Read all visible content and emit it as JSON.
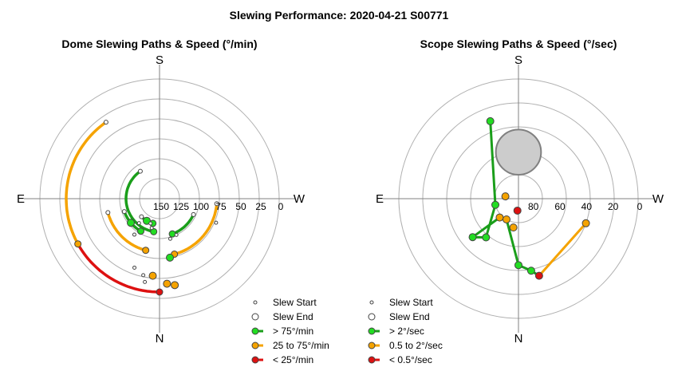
{
  "figure_title": "Slewing Performance: 2020-04-21 S00771",
  "colors": {
    "fast": "#1a9e1a",
    "fast_marker": "#22dd22",
    "medium": "#f5a300",
    "medium_marker": "#f5a300",
    "slow": "#dd1111",
    "slow_marker": "#dd1111",
    "grid": "#b0b0b0",
    "axis": "#808080",
    "disk_fill": "#cccccc",
    "disk_stroke": "#808080"
  },
  "chart_data": [
    {
      "type": "polar-scatter",
      "title": "Dome Slewing Paths & Speed (°/min)",
      "direction_labels": {
        "top": "S",
        "left": "E",
        "right": "W",
        "bottom": "N"
      },
      "radial_axis": {
        "min": 0,
        "max": 150,
        "reversed": true,
        "ticks": [
          150,
          125,
          100,
          75,
          50,
          25,
          0
        ],
        "tick_labels": [
          "150",
          "125",
          "100",
          "75",
          "50",
          "25",
          "0"
        ]
      },
      "legend": [
        {
          "key": "start",
          "label": "Slew Start"
        },
        {
          "key": "end",
          "label": "Slew End"
        },
        {
          "key": "fast",
          "label": "> 75°/min"
        },
        {
          "key": "medium",
          "label": "25 to 75°/min"
        },
        {
          "key": "slow",
          "label": "< 25°/min"
        }
      ],
      "paths": [
        {
          "speed": "slow",
          "arc": {
            "value": 33,
            "from": 0,
            "to": 61
          },
          "start_az": 0,
          "end_az": 61
        },
        {
          "speed": "medium",
          "arc": {
            "value": 33,
            "from": 61,
            "to": 145
          },
          "start_az": 61,
          "end_az": 145
        },
        {
          "speed": "medium",
          "arc": {
            "value": 83,
            "from": 15,
            "to": 75
          },
          "start_az": 15,
          "end_az": 75
        },
        {
          "speed": "medium",
          "arc": {
            "value": 78,
            "from": 345,
            "to": 275
          },
          "start_az": 345,
          "end_az": 275
        },
        {
          "speed": "fast",
          "arc": {
            "value": 103,
            "from": 340,
            "to": 295
          },
          "start_az": 340,
          "end_az": 295
        },
        {
          "speed": "fast",
          "arc": {
            "value": 103,
            "from": 30,
            "to": 70
          },
          "start_az": 30,
          "end_az": 70
        },
        {
          "speed": "fast",
          "arc": {
            "value": 108,
            "from": 10,
            "to": 145
          },
          "start_az": 10,
          "end_az": 145
        },
        {
          "speed": "fast",
          "arc": {
            "value": 118,
            "from": 15,
            "to": 45
          },
          "start_az": 15,
          "end_az": 45
        }
      ],
      "points": [
        {
          "kind": "start",
          "az": 10,
          "value": 44
        },
        {
          "kind": "medium",
          "az": 355,
          "value": 43
        },
        {
          "kind": "medium",
          "az": 350,
          "value": 40
        },
        {
          "kind": "start",
          "az": 12,
          "value": 52
        },
        {
          "kind": "start",
          "az": 20,
          "value": 58
        },
        {
          "kind": "medium",
          "az": 5,
          "value": 53
        },
        {
          "kind": "fast",
          "az": 350,
          "value": 75
        },
        {
          "kind": "start",
          "az": 335,
          "value": 100
        },
        {
          "kind": "start",
          "az": 345,
          "value": 98
        },
        {
          "kind": "start",
          "az": 35,
          "value": 95
        },
        {
          "kind": "start",
          "az": 40,
          "value": 110
        },
        {
          "kind": "fast",
          "az": 30,
          "value": 118
        },
        {
          "kind": "fast",
          "az": 50,
          "value": 103
        },
        {
          "kind": "start",
          "az": 15,
          "value": 112
        },
        {
          "kind": "start",
          "az": 20,
          "value": 117
        },
        {
          "kind": "start",
          "az": 293,
          "value": 73
        }
      ]
    },
    {
      "type": "polar-scatter",
      "title": "Scope Slewing Paths & Speed (°/sec)",
      "direction_labels": {
        "top": "S",
        "left": "E",
        "right": "W",
        "bottom": "N"
      },
      "radial_axis": {
        "min": 0,
        "max": 90,
        "reversed": true,
        "ticks": [
          80,
          60,
          40,
          20,
          0
        ],
        "tick_labels": [
          "80",
          "60",
          "40",
          "20",
          "0"
        ]
      },
      "legend": [
        {
          "key": "start",
          "label": "Slew Start"
        },
        {
          "key": "end",
          "label": "Slew End"
        },
        {
          "key": "fast",
          "label": "> 2°/sec"
        },
        {
          "key": "medium",
          "label": "0.5 to 2°/sec"
        },
        {
          "key": "slow",
          "label": "< 0.5°/sec"
        }
      ],
      "excluded_region": {
        "az": 180,
        "alt": 55,
        "radius_deg": 17
      },
      "points": [
        {
          "kind": "slow",
          "az": 345,
          "alt": 30
        },
        {
          "kind": "fast",
          "az": 350,
          "alt": 35
        },
        {
          "kind": "fast",
          "az": 50,
          "alt": 45
        },
        {
          "kind": "fast",
          "az": 40,
          "alt": 52
        },
        {
          "kind": "fast",
          "az": 160,
          "alt": 28
        },
        {
          "kind": "medium",
          "az": 290,
          "alt": 36
        },
        {
          "kind": "medium",
          "az": 45,
          "alt": 70
        },
        {
          "kind": "medium",
          "az": 100,
          "alt": 80
        },
        {
          "kind": "slow",
          "az": 5,
          "alt": 81
        },
        {
          "kind": "medium",
          "az": 30,
          "alt": 72
        },
        {
          "kind": "fast",
          "az": 75,
          "alt": 72
        },
        {
          "kind": "medium",
          "az": 10,
          "alt": 68
        },
        {
          "kind": "fast",
          "az": 0,
          "alt": 40
        }
      ]
    }
  ]
}
